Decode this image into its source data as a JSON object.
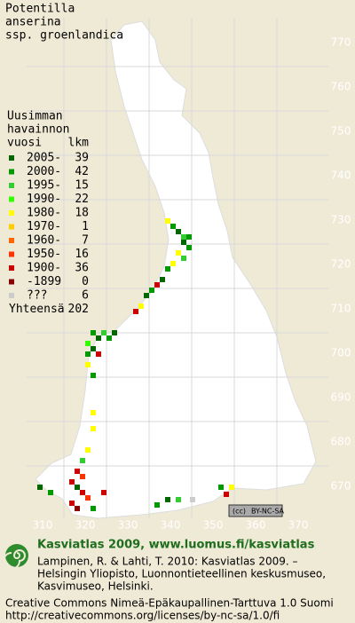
{
  "title": [
    "Potentilla",
    "anserina",
    "ssp. groenlandica"
  ],
  "legend": {
    "header": [
      "Uusimman",
      "havainnon",
      "vuosi",
      "lkm"
    ],
    "entries": [
      {
        "label": "2005-",
        "count": 39,
        "color": "#006600"
      },
      {
        "label": "2000-",
        "count": 42,
        "color": "#009900"
      },
      {
        "label": "1995-",
        "count": 15,
        "color": "#33cc33"
      },
      {
        "label": "1990-",
        "count": 22,
        "color": "#33ff00"
      },
      {
        "label": "1980-",
        "count": 18,
        "color": "#ffff00"
      },
      {
        "label": "1970-",
        "count": 1,
        "color": "#ffcc00"
      },
      {
        "label": "1960-",
        "count": 7,
        "color": "#ff6600"
      },
      {
        "label": "1950-",
        "count": 16,
        "color": "#ff3300"
      },
      {
        "label": "1900-",
        "count": 36,
        "color": "#cc0000"
      },
      {
        "label": "-1899",
        "count": 0,
        "color": "#880000"
      },
      {
        "label": "???",
        "count": 6,
        "color": "#cccccc"
      }
    ],
    "total_label": "Yhteensä",
    "total": 202
  },
  "x_labels": [
    310,
    320,
    330,
    340,
    350,
    360,
    370
  ],
  "y_labels": [
    770,
    760,
    750,
    740,
    730,
    720,
    710,
    700,
    690,
    680,
    670
  ],
  "badge": [
    "(cc)",
    "BY-NC-SA"
  ],
  "footer": {
    "site": "Kasviatlas 2009, www.luomus.fi/kasviatlas",
    "citation": [
      "Lampinen, R. & Lahti, T. 2010: Kasviatlas 2009. –",
      "Helsingin Yliopisto, Luonnontieteellinen keskusmuseo,",
      "Kasvimuseo, Helsinki."
    ],
    "license": [
      "Creative Commons Nimeä-Epäkaupallinen-Tarttuva 1.0 Suomi",
      "http://creativecommons.org/licenses/by-nc-sa/1.0/fi"
    ]
  }
}
